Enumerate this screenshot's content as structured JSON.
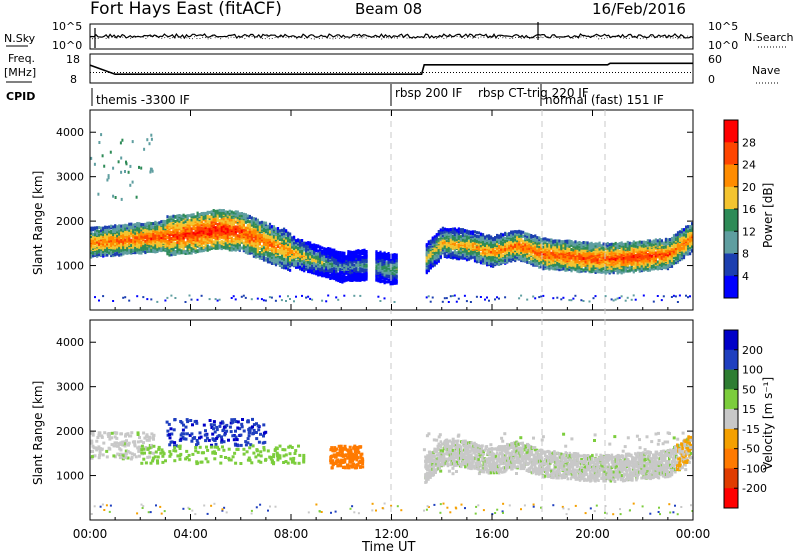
{
  "header": {
    "station": "Fort Hays East (fitACF)",
    "beam": "Beam 08",
    "date": "16/Feb/2016"
  },
  "noise_panel": {
    "left_label": "N.Sky",
    "right_label": "N.Search",
    "ticks_left": [
      "10^5",
      "10^0"
    ],
    "ticks_right": [
      "10^5",
      "10^0"
    ]
  },
  "freq_panel": {
    "left_label_1": "Freq.",
    "left_label_2": "[MHz]",
    "right_label": "Nave",
    "ticks_left": [
      "18",
      "8"
    ],
    "ticks_right": [
      "60",
      "0"
    ],
    "freq_series_mhz": [
      [
        0,
        14.5
      ],
      [
        1.0,
        11.0
      ],
      [
        13.2,
        11.0
      ],
      [
        13.3,
        14.6
      ],
      [
        20.6,
        14.6
      ],
      [
        20.7,
        15.2
      ],
      [
        24,
        15.2
      ]
    ],
    "nave_series": [
      [
        0,
        22
      ],
      [
        24,
        22
      ]
    ]
  },
  "cpid": {
    "label": "CPID",
    "segments": [
      {
        "text": "themis -3300 IF",
        "start_h": 0.0
      },
      {
        "text": "rbsp 200 IF",
        "start_h": 12.0
      },
      {
        "text": "rbsp CT-trig 220 IF",
        "start_h": 15.0
      },
      {
        "text": "normal (fast) 151 IF",
        "start_h": 17.9
      }
    ]
  },
  "panels": [
    {
      "name": "power",
      "ylabel": "Slant Range [km]",
      "yticks": [
        "4000",
        "3000",
        "2000",
        "1000"
      ],
      "cbar_label": "Power [dB]",
      "cbar_ticks": [
        "28",
        "24",
        "20",
        "16",
        "12",
        "8",
        "4"
      ],
      "cbar_colors": [
        "#ff0000",
        "#ff4500",
        "#ff8c00",
        "#f4c430",
        "#2e8b57",
        "#5f9ea0",
        "#1c3fb0",
        "#0000ff"
      ]
    },
    {
      "name": "velocity",
      "ylabel": "Slant Range [km]",
      "yticks": [
        "4000",
        "3000",
        "2000",
        "1000"
      ],
      "cbar_label": "Velocity [m s⁻¹]",
      "cbar_ticks": [
        "200",
        "100",
        "50",
        "15",
        "-15",
        "-50",
        "-100",
        "-200"
      ],
      "cbar_colors": [
        "#0000c8",
        "#1f3fbf",
        "#2e7d32",
        "#7ccd3c",
        "#c8c8c8",
        "#f4a000",
        "#ff7a00",
        "#e03c00",
        "#ff0000"
      ]
    }
  ],
  "time_axis": {
    "xlabel": "Time UT",
    "ticks": [
      "00:00",
      "04:00",
      "08:00",
      "12:00",
      "16:00",
      "20:00",
      "00:00"
    ]
  },
  "chart_data": {
    "type": "heatmap",
    "title": "Fort Hays East (fitACF)  Beam 08  16/Feb/2016",
    "xlabel": "Time UT",
    "ylabel": "Slant Range [km]",
    "xlim": [
      0,
      24
    ],
    "ylim": [
      0,
      4500
    ],
    "power_band_center_km": [
      [
        0,
        1550
      ],
      [
        1,
        1600
      ],
      [
        2,
        1650
      ],
      [
        3,
        1700
      ],
      [
        4,
        1750
      ],
      [
        5,
        1850
      ],
      [
        6,
        1800
      ],
      [
        7,
        1550
      ],
      [
        8,
        1350
      ],
      [
        9,
        1150
      ],
      [
        10,
        1000
      ],
      [
        11,
        1050
      ],
      [
        12,
        950
      ],
      [
        13,
        1000
      ],
      [
        14,
        1550
      ],
      [
        15,
        1500
      ],
      [
        16,
        1350
      ],
      [
        17,
        1500
      ],
      [
        18,
        1300
      ],
      [
        19,
        1250
      ],
      [
        20,
        1200
      ],
      [
        21,
        1200
      ],
      [
        22,
        1250
      ],
      [
        23,
        1300
      ],
      [
        24,
        1700
      ]
    ],
    "power_band_peak_db": [
      [
        0,
        24
      ],
      [
        2,
        26
      ],
      [
        5,
        30
      ],
      [
        8,
        22
      ],
      [
        10,
        10
      ],
      [
        14,
        20
      ],
      [
        18,
        26
      ],
      [
        22,
        28
      ],
      [
        24,
        24
      ]
    ],
    "velocity_regions": [
      {
        "label": "-15..15",
        "time_range_h": [
          0,
          2.5
        ],
        "range_km": [
          1400,
          2000
        ]
      },
      {
        "label": "100..200",
        "time_range_h": [
          3.0,
          7.0
        ],
        "range_km": [
          1700,
          2300
        ]
      },
      {
        "label": "15..50",
        "time_range_h": [
          2.0,
          8.5
        ],
        "range_km": [
          1300,
          1700
        ]
      },
      {
        "label": "-50..-100",
        "time_range_h": [
          9.5,
          10.8
        ],
        "range_km": [
          1200,
          1700
        ]
      },
      {
        "label": "-15..15",
        "time_range_h": [
          13.2,
          24
        ],
        "range_km": [
          1000,
          2000
        ]
      }
    ],
    "grid": false
  }
}
